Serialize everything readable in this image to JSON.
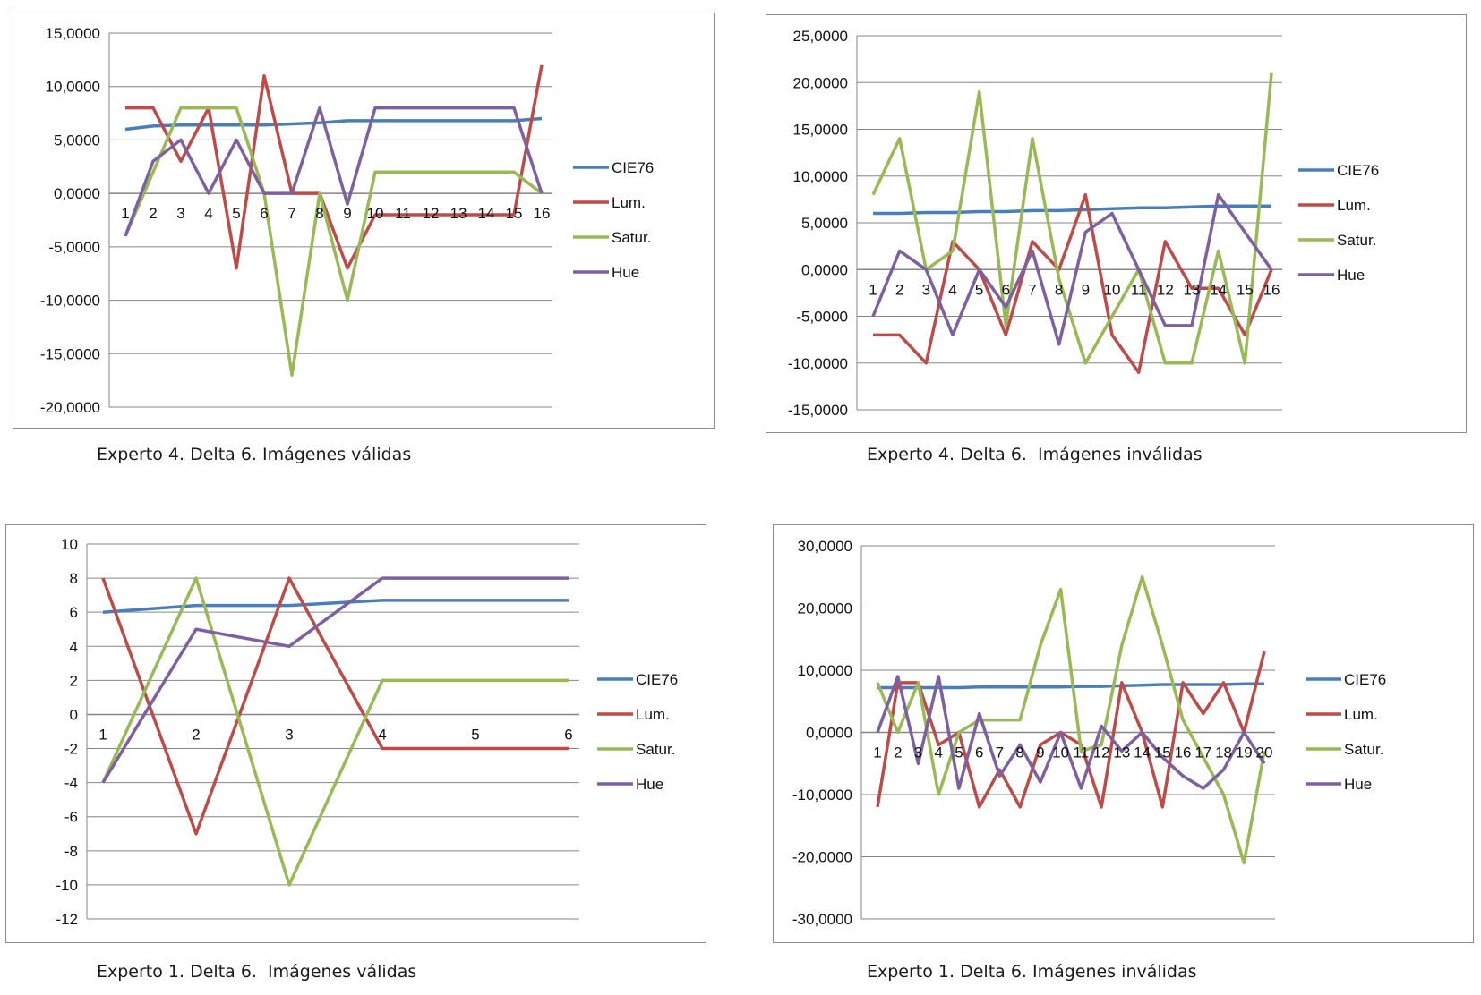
{
  "colors": {
    "CIE76": "#4a7ebb",
    "Lum.": "#be4b48",
    "Satur.": "#98b954",
    "Hue": "#7d60a0",
    "grid": "#868686"
  },
  "chart_data": [
    {
      "type": "line",
      "caption": "Experto 4. Delta 6. Imágenes válidas",
      "ylim": [
        -20,
        15
      ],
      "ystep": 5,
      "y_tick_labels": [
        "15,0000",
        "10,0000",
        "5,0000",
        "0,0000",
        "-5,0000",
        "-10,0000",
        "-15,0000",
        "-20,0000"
      ],
      "categories": [
        "1",
        "2",
        "3",
        "4",
        "5",
        "6",
        "7",
        "8",
        "9",
        "10",
        "11",
        "12",
        "13",
        "14",
        "15",
        "16"
      ],
      "series": [
        {
          "name": "CIE76",
          "values": [
            6.0,
            6.3,
            6.4,
            6.4,
            6.4,
            6.4,
            6.5,
            6.6,
            6.8,
            6.8,
            6.8,
            6.8,
            6.8,
            6.8,
            6.8,
            7.0
          ]
        },
        {
          "name": "Lum.",
          "values": [
            8,
            8,
            3,
            8,
            -7,
            11,
            0,
            0,
            -7,
            -2,
            -2,
            -2,
            -2,
            -2,
            -2,
            12
          ]
        },
        {
          "name": "Satur.",
          "values": [
            -4,
            2,
            8,
            8,
            8,
            0,
            -17,
            0,
            -10,
            2,
            2,
            2,
            2,
            2,
            2,
            0
          ]
        },
        {
          "name": "Hue",
          "values": [
            -4,
            3,
            5,
            0,
            5,
            0,
            0,
            8,
            -1,
            8,
            8,
            8,
            8,
            8,
            8,
            0
          ]
        }
      ]
    },
    {
      "type": "line",
      "caption": "Experto 4. Delta 6.  Imágenes inválidas",
      "ylim": [
        -15,
        25
      ],
      "ystep": 5,
      "y_tick_labels": [
        "25,0000",
        "20,0000",
        "15,0000",
        "10,0000",
        "5,0000",
        "0,0000",
        "-5,0000",
        "-10,0000",
        "-15,0000"
      ],
      "categories": [
        "1",
        "2",
        "3",
        "4",
        "5",
        "6",
        "7",
        "8",
        "9",
        "10",
        "11",
        "12",
        "13",
        "14",
        "15",
        "16"
      ],
      "series": [
        {
          "name": "CIE76",
          "values": [
            6.0,
            6.0,
            6.1,
            6.1,
            6.2,
            6.2,
            6.3,
            6.3,
            6.4,
            6.5,
            6.6,
            6.6,
            6.7,
            6.8,
            6.8,
            6.8
          ]
        },
        {
          "name": "Lum.",
          "values": [
            -7,
            -7,
            -10,
            3,
            0,
            -7,
            3,
            0,
            8,
            -7,
            -11,
            3,
            -2,
            -2,
            -7,
            0
          ]
        },
        {
          "name": "Satur.",
          "values": [
            8,
            14,
            0,
            2,
            19,
            -6,
            14,
            -1,
            -10,
            -5,
            0,
            -10,
            -10,
            2,
            -10,
            21
          ]
        },
        {
          "name": "Hue",
          "values": [
            -5,
            2,
            0,
            -7,
            0,
            -4,
            2,
            -8,
            4,
            6,
            0,
            -6,
            -6,
            8,
            4,
            0
          ]
        }
      ]
    },
    {
      "type": "line",
      "caption": "Experto 1. Delta 6.  Imágenes válidas",
      "ylim": [
        -12,
        10
      ],
      "ystep": 2,
      "y_tick_labels": [
        "10",
        "8",
        "6",
        "4",
        "2",
        "0",
        "-2",
        "-4",
        "-6",
        "-8",
        "-10",
        "-12"
      ],
      "categories": [
        "1",
        "2",
        "3",
        "4",
        "5",
        "6"
      ],
      "series": [
        {
          "name": "CIE76",
          "values": [
            6.0,
            6.4,
            6.4,
            6.7,
            6.7,
            6.7
          ]
        },
        {
          "name": "Lum.",
          "values": [
            8,
            -7,
            8,
            -2,
            -2,
            -2
          ]
        },
        {
          "name": "Satur.",
          "values": [
            -4,
            8,
            -10,
            2,
            2,
            2
          ]
        },
        {
          "name": "Hue",
          "values": [
            -4,
            5,
            4,
            8,
            8,
            8
          ]
        }
      ]
    },
    {
      "type": "line",
      "caption": "Experto 1. Delta 6. Imágenes inválidas",
      "ylim": [
        -30,
        30
      ],
      "ystep": 10,
      "y_tick_labels": [
        "30,0000",
        "20,0000",
        "10,0000",
        "0,0000",
        "-10,0000",
        "-20,0000",
        "-30,0000"
      ],
      "categories": [
        "1",
        "2",
        "3",
        "4",
        "5",
        "6",
        "7",
        "8",
        "9",
        "10",
        "11",
        "12",
        "13",
        "14",
        "15",
        "16",
        "17",
        "18",
        "19",
        "20"
      ],
      "series": [
        {
          "name": "CIE76",
          "values": [
            7.2,
            7.2,
            7.2,
            7.2,
            7.2,
            7.3,
            7.3,
            7.3,
            7.3,
            7.3,
            7.4,
            7.4,
            7.5,
            7.6,
            7.7,
            7.7,
            7.7,
            7.7,
            7.8,
            7.8
          ]
        },
        {
          "name": "Lum.",
          "values": [
            -12,
            8,
            8,
            -2,
            0,
            -12,
            -6,
            -12,
            -2,
            0,
            -2,
            -12,
            8,
            0,
            -12,
            8,
            3,
            8,
            0,
            13
          ]
        },
        {
          "name": "Satur.",
          "values": [
            8,
            0,
            8,
            -10,
            0,
            2,
            2,
            2,
            14,
            23,
            -3,
            -2,
            14,
            25,
            14,
            2,
            -4,
            -10,
            -21,
            -3
          ]
        },
        {
          "name": "Hue",
          "values": [
            0,
            9,
            -5,
            9,
            -9,
            3,
            -7,
            -2,
            -8,
            0,
            -9,
            1,
            -3,
            0,
            -4,
            -7,
            -9,
            -6,
            0,
            -5
          ]
        }
      ]
    }
  ]
}
